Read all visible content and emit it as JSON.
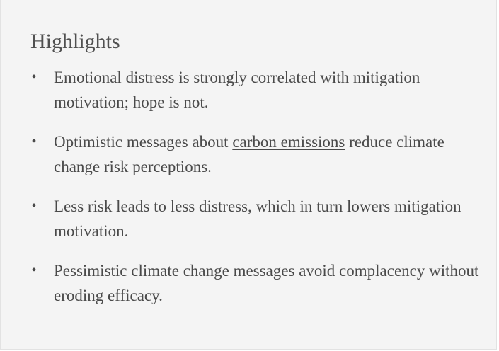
{
  "highlights": {
    "title": "Highlights",
    "bullet_glyph": "•",
    "items": [
      {
        "text_before": "Emotional distress is strongly correlated with mitigation motivation; hope is not.",
        "link": "",
        "text_after": ""
      },
      {
        "text_before": "Optimistic messages about ",
        "link": "carbon emissions",
        "text_after": " reduce climate change risk perceptions."
      },
      {
        "text_before": "Less risk leads to less distress, which in turn lowers mitigation motivation.",
        "link": "",
        "text_after": ""
      },
      {
        "text_before": "Pessimistic climate change messages avoid complacency without eroding efficacy.",
        "link": "",
        "text_after": ""
      }
    ]
  }
}
